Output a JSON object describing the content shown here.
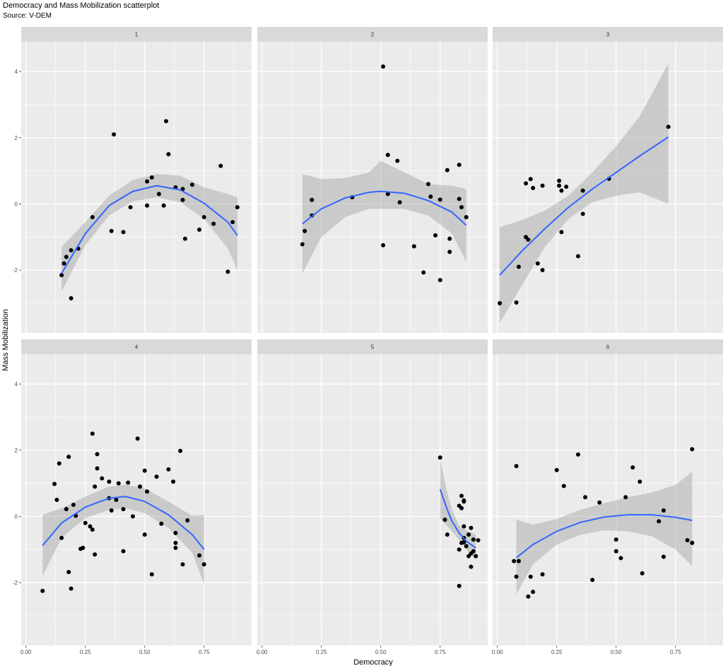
{
  "chart_data": {
    "type": "scatter",
    "title": "Democracy and Mass Mobilization scatterplot",
    "subtitle": "Source: V-DEM",
    "xlabel": "Democracy",
    "ylabel": "Mass Mobilization",
    "xlim": [
      -0.02,
      0.95
    ],
    "ylim": [
      -3.9,
      4.9
    ],
    "x_ticks": [
      0.0,
      0.25,
      0.5,
      0.75
    ],
    "x_tick_labels": [
      "0.00",
      "0.25",
      "0.50",
      "0.75"
    ],
    "y_ticks": [
      -2,
      0,
      2,
      4
    ],
    "y_tick_labels": [
      "-2",
      "0",
      "2",
      "4"
    ],
    "grid": true,
    "facet_layout": "2 rows x 3 columns",
    "colors": {
      "panel_bg": "#EBEBEB",
      "strip_bg": "#D9D9D9",
      "grid": "#FFFFFF",
      "point": "#000000",
      "trend_line": "#3366FF",
      "ribbon": "#999999"
    },
    "panels": [
      {
        "label": "1",
        "points": [
          [
            0.15,
            -2.15
          ],
          [
            0.16,
            -1.8
          ],
          [
            0.17,
            -1.6
          ],
          [
            0.19,
            -1.4
          ],
          [
            0.19,
            -2.85
          ],
          [
            0.22,
            -1.35
          ],
          [
            0.28,
            -0.4
          ],
          [
            0.36,
            -0.82
          ],
          [
            0.37,
            2.1
          ],
          [
            0.41,
            -0.85
          ],
          [
            0.44,
            -0.1
          ],
          [
            0.51,
            -0.05
          ],
          [
            0.51,
            0.68
          ],
          [
            0.53,
            0.8
          ],
          [
            0.56,
            0.3
          ],
          [
            0.58,
            -0.05
          ],
          [
            0.59,
            2.5
          ],
          [
            0.6,
            1.5
          ],
          [
            0.63,
            0.5
          ],
          [
            0.66,
            0.45
          ],
          [
            0.66,
            0.12
          ],
          [
            0.67,
            -1.05
          ],
          [
            0.7,
            0.58
          ],
          [
            0.73,
            -0.78
          ],
          [
            0.75,
            -0.4
          ],
          [
            0.79,
            -0.6
          ],
          [
            0.82,
            1.15
          ],
          [
            0.85,
            -2.05
          ],
          [
            0.87,
            -0.55
          ],
          [
            0.89,
            -0.1
          ]
        ],
        "trend": [
          [
            0.15,
            -2.1
          ],
          [
            0.25,
            -0.9
          ],
          [
            0.35,
            -0.05
          ],
          [
            0.45,
            0.38
          ],
          [
            0.55,
            0.55
          ],
          [
            0.65,
            0.42
          ],
          [
            0.75,
            0.02
          ],
          [
            0.85,
            -0.55
          ],
          [
            0.89,
            -0.95
          ]
        ],
        "band": [
          [
            0.15,
            -2.65,
            -1.3
          ],
          [
            0.25,
            -1.25,
            -0.55
          ],
          [
            0.35,
            -0.35,
            0.25
          ],
          [
            0.45,
            0.08,
            0.72
          ],
          [
            0.55,
            0.2,
            0.9
          ],
          [
            0.65,
            0.05,
            0.85
          ],
          [
            0.75,
            -0.45,
            0.5
          ],
          [
            0.85,
            -1.35,
            0.3
          ],
          [
            0.89,
            -2.0,
            0.2
          ]
        ]
      },
      {
        "label": "2",
        "points": [
          [
            0.17,
            -1.22
          ],
          [
            0.18,
            -0.82
          ],
          [
            0.21,
            0.12
          ],
          [
            0.21,
            -0.35
          ],
          [
            0.38,
            0.2
          ],
          [
            0.51,
            4.15
          ],
          [
            0.51,
            -1.25
          ],
          [
            0.53,
            1.48
          ],
          [
            0.53,
            0.3
          ],
          [
            0.57,
            1.3
          ],
          [
            0.58,
            0.05
          ],
          [
            0.64,
            -1.28
          ],
          [
            0.68,
            -2.07
          ],
          [
            0.7,
            0.6
          ],
          [
            0.71,
            0.22
          ],
          [
            0.73,
            -0.95
          ],
          [
            0.75,
            0.13
          ],
          [
            0.75,
            -2.3
          ],
          [
            0.78,
            1.02
          ],
          [
            0.79,
            -1.05
          ],
          [
            0.79,
            -1.45
          ],
          [
            0.83,
            1.18
          ],
          [
            0.83,
            0.15
          ],
          [
            0.84,
            -0.1
          ],
          [
            0.86,
            -0.4
          ]
        ],
        "trend": [
          [
            0.17,
            -0.6
          ],
          [
            0.25,
            -0.15
          ],
          [
            0.35,
            0.18
          ],
          [
            0.45,
            0.35
          ],
          [
            0.5,
            0.38
          ],
          [
            0.6,
            0.32
          ],
          [
            0.7,
            0.1
          ],
          [
            0.8,
            -0.25
          ],
          [
            0.86,
            -0.65
          ]
        ],
        "band": [
          [
            0.17,
            -2.1,
            0.9
          ],
          [
            0.25,
            -1.0,
            0.75
          ],
          [
            0.35,
            -0.4,
            0.78
          ],
          [
            0.45,
            -0.15,
            0.95
          ],
          [
            0.5,
            -0.15,
            1.3
          ],
          [
            0.6,
            -0.15,
            0.95
          ],
          [
            0.7,
            -0.35,
            0.6
          ],
          [
            0.8,
            -0.9,
            0.55
          ],
          [
            0.86,
            -1.75,
            0.45
          ]
        ]
      },
      {
        "label": "3",
        "points": [
          [
            0.01,
            -3.0
          ],
          [
            0.08,
            -2.98
          ],
          [
            0.09,
            -1.9
          ],
          [
            0.12,
            0.62
          ],
          [
            0.12,
            -1.0
          ],
          [
            0.13,
            -1.08
          ],
          [
            0.14,
            0.75
          ],
          [
            0.15,
            0.48
          ],
          [
            0.17,
            -1.8
          ],
          [
            0.19,
            -2.0
          ],
          [
            0.19,
            0.55
          ],
          [
            0.26,
            0.7
          ],
          [
            0.26,
            0.55
          ],
          [
            0.27,
            0.4
          ],
          [
            0.27,
            -0.85
          ],
          [
            0.29,
            0.52
          ],
          [
            0.34,
            -1.58
          ],
          [
            0.36,
            0.4
          ],
          [
            0.36,
            -0.3
          ],
          [
            0.47,
            0.76
          ],
          [
            0.72,
            2.33
          ]
        ],
        "trend": [
          [
            0.01,
            -2.15
          ],
          [
            0.1,
            -1.45
          ],
          [
            0.2,
            -0.75
          ],
          [
            0.3,
            -0.1
          ],
          [
            0.4,
            0.45
          ],
          [
            0.5,
            0.95
          ],
          [
            0.6,
            1.45
          ],
          [
            0.72,
            2.02
          ]
        ],
        "band": [
          [
            0.01,
            -3.6,
            -0.7
          ],
          [
            0.1,
            -2.5,
            -0.5
          ],
          [
            0.2,
            -1.3,
            -0.2
          ],
          [
            0.3,
            -0.45,
            0.25
          ],
          [
            0.4,
            0.05,
            0.95
          ],
          [
            0.5,
            0.25,
            1.75
          ],
          [
            0.6,
            0.35,
            2.65
          ],
          [
            0.72,
            0.0,
            4.25
          ]
        ]
      },
      {
        "label": "4",
        "points": [
          [
            0.07,
            -2.25
          ],
          [
            0.12,
            0.98
          ],
          [
            0.13,
            0.5
          ],
          [
            0.14,
            1.6
          ],
          [
            0.15,
            -0.65
          ],
          [
            0.17,
            0.22
          ],
          [
            0.18,
            1.8
          ],
          [
            0.18,
            -1.68
          ],
          [
            0.19,
            -2.18
          ],
          [
            0.2,
            0.35
          ],
          [
            0.21,
            0.02
          ],
          [
            0.23,
            -0.98
          ],
          [
            0.24,
            -0.95
          ],
          [
            0.25,
            -0.2
          ],
          [
            0.27,
            -0.3
          ],
          [
            0.28,
            -0.4
          ],
          [
            0.28,
            2.5
          ],
          [
            0.29,
            0.9
          ],
          [
            0.29,
            -1.15
          ],
          [
            0.3,
            1.45
          ],
          [
            0.3,
            1.88
          ],
          [
            0.32,
            1.15
          ],
          [
            0.35,
            0.55
          ],
          [
            0.35,
            1.05
          ],
          [
            0.36,
            0.18
          ],
          [
            0.38,
            0.5
          ],
          [
            0.39,
            1.0
          ],
          [
            0.41,
            0.22
          ],
          [
            0.41,
            -1.05
          ],
          [
            0.43,
            1.02
          ],
          [
            0.45,
            0.0
          ],
          [
            0.47,
            2.35
          ],
          [
            0.48,
            0.9
          ],
          [
            0.5,
            1.38
          ],
          [
            0.5,
            -0.55
          ],
          [
            0.51,
            0.75
          ],
          [
            0.53,
            -1.75
          ],
          [
            0.55,
            1.2
          ],
          [
            0.57,
            -0.22
          ],
          [
            0.6,
            1.42
          ],
          [
            0.62,
            1.05
          ],
          [
            0.63,
            -0.5
          ],
          [
            0.63,
            -0.8
          ],
          [
            0.63,
            -0.95
          ],
          [
            0.65,
            1.98
          ],
          [
            0.66,
            -1.45
          ],
          [
            0.68,
            -0.12
          ],
          [
            0.73,
            -1.18
          ],
          [
            0.75,
            -1.45
          ]
        ],
        "trend": [
          [
            0.07,
            -0.88
          ],
          [
            0.15,
            -0.2
          ],
          [
            0.25,
            0.28
          ],
          [
            0.35,
            0.55
          ],
          [
            0.42,
            0.6
          ],
          [
            0.5,
            0.45
          ],
          [
            0.6,
            0.05
          ],
          [
            0.7,
            -0.55
          ],
          [
            0.75,
            -1.0
          ]
        ],
        "band": [
          [
            0.07,
            -1.8,
            0.05
          ],
          [
            0.15,
            -0.65,
            0.25
          ],
          [
            0.25,
            -0.05,
            0.6
          ],
          [
            0.35,
            0.2,
            0.9
          ],
          [
            0.42,
            0.25,
            0.95
          ],
          [
            0.5,
            0.1,
            0.85
          ],
          [
            0.6,
            -0.35,
            0.45
          ],
          [
            0.7,
            -1.1,
            0.02
          ],
          [
            0.75,
            -2.05,
            0.05
          ]
        ]
      },
      {
        "label": "5",
        "points": [
          [
            0.75,
            1.78
          ],
          [
            0.77,
            -0.1
          ],
          [
            0.78,
            -0.55
          ],
          [
            0.83,
            -2.1
          ],
          [
            0.83,
            0.32
          ],
          [
            0.83,
            -1.0
          ],
          [
            0.84,
            0.62
          ],
          [
            0.84,
            0.25
          ],
          [
            0.84,
            -0.8
          ],
          [
            0.85,
            0.45
          ],
          [
            0.85,
            0.48
          ],
          [
            0.85,
            -0.3
          ],
          [
            0.85,
            -0.78
          ],
          [
            0.85,
            -0.65
          ],
          [
            0.86,
            -0.9
          ],
          [
            0.87,
            -0.55
          ],
          [
            0.87,
            -1.2
          ],
          [
            0.88,
            -0.35
          ],
          [
            0.88,
            -1.52
          ],
          [
            0.88,
            -1.12
          ],
          [
            0.89,
            -1.05
          ],
          [
            0.89,
            -0.7
          ],
          [
            0.9,
            -1.2
          ],
          [
            0.91,
            -0.72
          ]
        ],
        "trend": [
          [
            0.75,
            0.82
          ],
          [
            0.78,
            0.2
          ],
          [
            0.8,
            -0.15
          ],
          [
            0.83,
            -0.5
          ],
          [
            0.86,
            -0.75
          ],
          [
            0.9,
            -0.95
          ]
        ],
        "band": [
          [
            0.75,
            -0.05,
            1.72
          ],
          [
            0.78,
            -0.3,
            0.72
          ],
          [
            0.8,
            -0.45,
            0.2
          ],
          [
            0.83,
            -0.72,
            -0.28
          ],
          [
            0.86,
            -1.0,
            -0.42
          ],
          [
            0.9,
            -1.3,
            -0.55
          ]
        ]
      },
      {
        "label": "6",
        "points": [
          [
            0.07,
            -1.35
          ],
          [
            0.08,
            -1.82
          ],
          [
            0.08,
            1.52
          ],
          [
            0.09,
            -1.35
          ],
          [
            0.13,
            -2.42
          ],
          [
            0.14,
            -1.82
          ],
          [
            0.15,
            -2.28
          ],
          [
            0.19,
            -1.75
          ],
          [
            0.25,
            1.4
          ],
          [
            0.28,
            0.92
          ],
          [
            0.34,
            1.87
          ],
          [
            0.37,
            0.58
          ],
          [
            0.4,
            -1.92
          ],
          [
            0.43,
            0.42
          ],
          [
            0.5,
            -0.7
          ],
          [
            0.5,
            -1.05
          ],
          [
            0.52,
            -1.26
          ],
          [
            0.54,
            0.58
          ],
          [
            0.57,
            1.48
          ],
          [
            0.6,
            1.05
          ],
          [
            0.61,
            -1.72
          ],
          [
            0.68,
            -0.15
          ],
          [
            0.7,
            -1.22
          ],
          [
            0.7,
            0.18
          ],
          [
            0.8,
            -0.72
          ],
          [
            0.82,
            -0.8
          ],
          [
            0.82,
            2.03
          ]
        ],
        "trend": [
          [
            0.08,
            -1.25
          ],
          [
            0.15,
            -0.85
          ],
          [
            0.25,
            -0.45
          ],
          [
            0.35,
            -0.18
          ],
          [
            0.45,
            -0.02
          ],
          [
            0.55,
            0.05
          ],
          [
            0.65,
            0.05
          ],
          [
            0.75,
            -0.03
          ],
          [
            0.82,
            -0.12
          ]
        ],
        "band": [
          [
            0.08,
            -2.35,
            -0.1
          ],
          [
            0.15,
            -1.45,
            -0.25
          ],
          [
            0.25,
            -0.85,
            -0.08
          ],
          [
            0.35,
            -0.55,
            0.2
          ],
          [
            0.45,
            -0.42,
            0.4
          ],
          [
            0.55,
            -0.45,
            0.58
          ],
          [
            0.65,
            -0.6,
            0.72
          ],
          [
            0.75,
            -1.0,
            0.95
          ],
          [
            0.82,
            -1.5,
            1.35
          ]
        ]
      }
    ]
  }
}
